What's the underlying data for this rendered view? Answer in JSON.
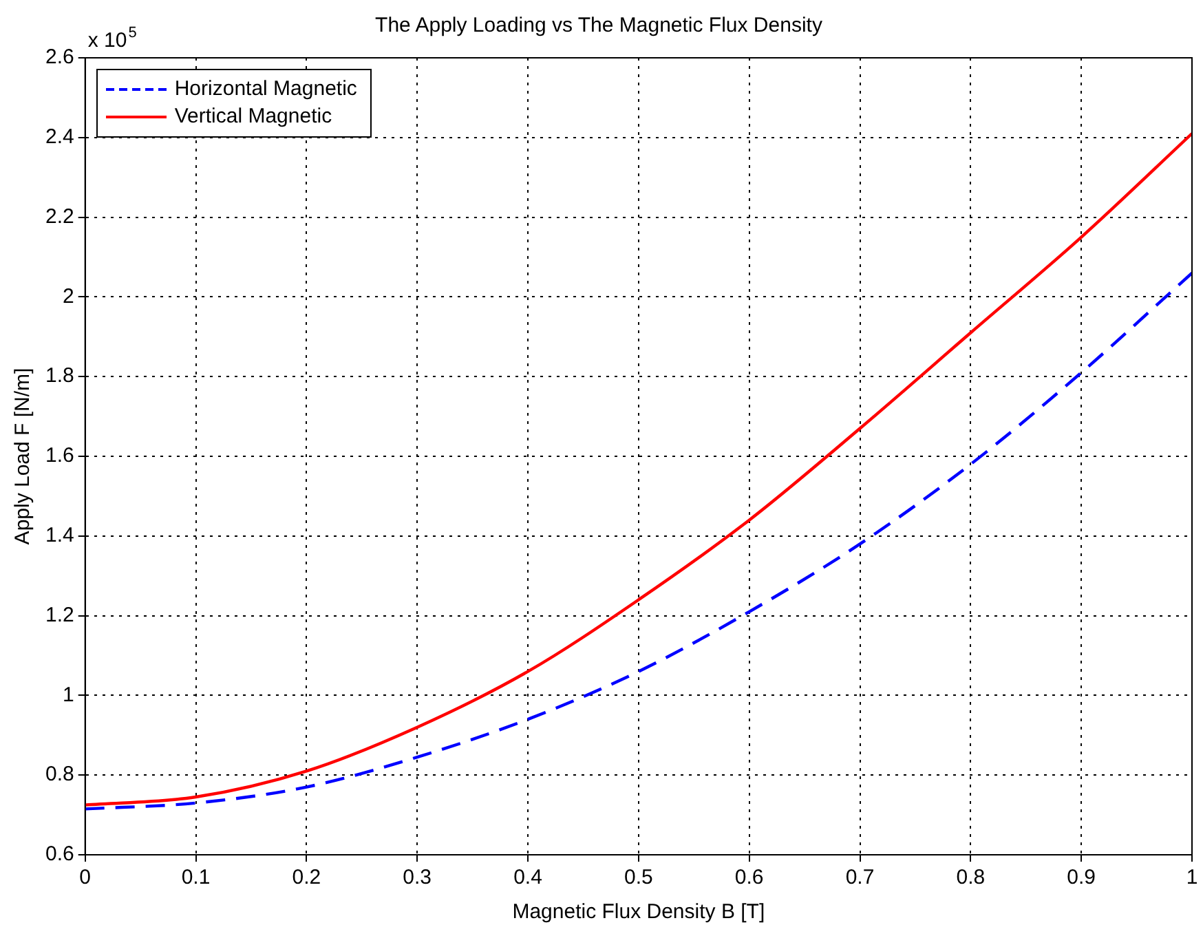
{
  "chart_data": {
    "type": "line",
    "title": "The Apply Loading vs The Magnetic Flux Density",
    "xlabel": "Magnetic Flux Density B [T]",
    "ylabel": "Apply Load F [N/m]",
    "annotations": [
      "x 10$^{5}$"
    ],
    "x": [
      0,
      0.1,
      0.2,
      0.3,
      0.4,
      0.5,
      0.6,
      0.7,
      0.8,
      0.9,
      1
    ],
    "series": [
      {
        "name": "Horizontal Magnetic",
        "color": "#0000ff",
        "line_style": "dashed",
        "values": [
          0.715,
          0.73,
          0.77,
          0.845,
          0.94,
          1.06,
          1.21,
          1.38,
          1.58,
          1.81,
          2.06
        ]
      },
      {
        "name": "Vertical Magnetic",
        "color": "#ff0000",
        "line_style": "solid",
        "values": [
          0.725,
          0.745,
          0.81,
          0.92,
          1.06,
          1.24,
          1.44,
          1.67,
          1.91,
          2.15,
          2.41
        ]
      }
    ],
    "xlim": [
      0,
      1
    ],
    "xticks": [
      0,
      0.1,
      0.2,
      0.3,
      0.4,
      0.5,
      0.6,
      0.7,
      0.8,
      0.9,
      1
    ],
    "ylim": [
      0.6,
      2.6
    ],
    "yticks": [
      0.6,
      0.8,
      1,
      1.2,
      1.4,
      1.6,
      1.8,
      2,
      2.2,
      2.4,
      2.6
    ],
    "grid": true,
    "legend": "top left",
    "marker": "none"
  }
}
